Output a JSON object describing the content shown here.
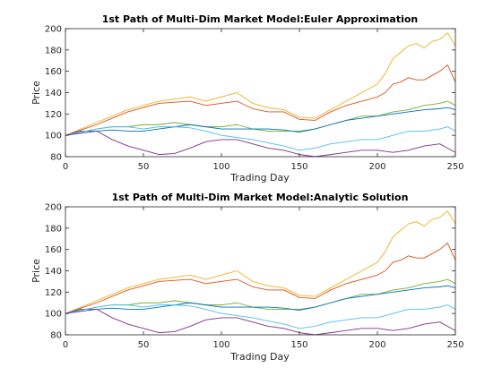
{
  "chart_data": [
    {
      "type": "line",
      "title": "1st Path of Multi-Dim Market Model:Euler Approximation",
      "xlabel": "Trading Day",
      "ylabel": "Price",
      "xlim": [
        0,
        250
      ],
      "ylim": [
        80,
        200
      ],
      "xticks": [
        0,
        50,
        100,
        150,
        200,
        250
      ],
      "yticks": [
        80,
        100,
        120,
        140,
        160,
        180,
        200
      ],
      "grid": false,
      "series": [
        {
          "color": "#EDB120",
          "x": [
            0,
            10,
            20,
            30,
            40,
            50,
            60,
            70,
            80,
            90,
            100,
            110,
            120,
            130,
            140,
            150,
            160,
            170,
            180,
            190,
            200,
            205,
            210,
            215,
            220,
            225,
            230,
            235,
            240,
            245,
            250
          ],
          "values": [
            100,
            106,
            112,
            118,
            124,
            128,
            132,
            134,
            136,
            132,
            136,
            140,
            130,
            126,
            124,
            117,
            116,
            124,
            132,
            140,
            148,
            158,
            172,
            178,
            184,
            186,
            182,
            188,
            190,
            196,
            184
          ]
        },
        {
          "color": "#D95319",
          "x": [
            0,
            10,
            20,
            30,
            40,
            50,
            60,
            70,
            80,
            90,
            100,
            110,
            120,
            130,
            140,
            150,
            160,
            170,
            180,
            190,
            200,
            205,
            210,
            215,
            220,
            225,
            230,
            235,
            240,
            245,
            250
          ],
          "values": [
            100,
            105,
            110,
            116,
            122,
            126,
            130,
            131,
            132,
            128,
            130,
            132,
            125,
            122,
            122,
            115,
            114,
            122,
            128,
            132,
            136,
            140,
            148,
            150,
            154,
            152,
            152,
            156,
            160,
            166,
            150
          ]
        },
        {
          "color": "#77AC30",
          "x": [
            0,
            10,
            20,
            30,
            40,
            50,
            60,
            70,
            80,
            90,
            100,
            110,
            120,
            130,
            140,
            150,
            160,
            170,
            180,
            190,
            200,
            210,
            220,
            230,
            240,
            245,
            250
          ],
          "values": [
            100,
            103,
            106,
            108,
            108,
            110,
            110,
            112,
            110,
            108,
            108,
            110,
            106,
            104,
            104,
            104,
            106,
            110,
            114,
            118,
            118,
            122,
            124,
            128,
            130,
            132,
            128
          ]
        },
        {
          "color": "#0072BD",
          "x": [
            0,
            10,
            20,
            30,
            40,
            50,
            60,
            70,
            80,
            90,
            100,
            110,
            120,
            130,
            140,
            150,
            160,
            170,
            180,
            190,
            200,
            210,
            220,
            230,
            240,
            245,
            250
          ],
          "values": [
            100,
            104,
            104,
            105,
            104,
            104,
            106,
            108,
            110,
            108,
            106,
            106,
            106,
            106,
            105,
            103,
            106,
            110,
            114,
            116,
            118,
            120,
            122,
            124,
            125,
            126,
            124
          ]
        },
        {
          "color": "#4DBEEE",
          "x": [
            0,
            10,
            20,
            30,
            40,
            50,
            60,
            70,
            80,
            90,
            100,
            110,
            120,
            130,
            140,
            150,
            160,
            170,
            180,
            190,
            200,
            210,
            220,
            230,
            240,
            245,
            250
          ],
          "values": [
            100,
            103,
            106,
            108,
            108,
            106,
            108,
            108,
            107,
            104,
            100,
            98,
            96,
            93,
            90,
            86,
            88,
            92,
            94,
            96,
            96,
            100,
            104,
            104,
            106,
            108,
            104
          ]
        },
        {
          "color": "#7E2F8E",
          "x": [
            0,
            10,
            20,
            30,
            40,
            50,
            60,
            70,
            80,
            90,
            100,
            110,
            120,
            130,
            140,
            150,
            160,
            170,
            180,
            190,
            200,
            210,
            220,
            230,
            240,
            245,
            250
          ],
          "values": [
            100,
            102,
            104,
            96,
            90,
            86,
            82,
            83,
            88,
            94,
            96,
            96,
            92,
            88,
            86,
            82,
            80,
            82,
            84,
            86,
            86,
            84,
            86,
            90,
            92,
            88,
            84
          ]
        }
      ]
    },
    {
      "type": "line",
      "title": "1st Path of Multi-Dim Market Model:Analytic Solution",
      "xlabel": "Trading Day",
      "ylabel": "Price",
      "xlim": [
        0,
        250
      ],
      "ylim": [
        80,
        200
      ],
      "xticks": [
        0,
        50,
        100,
        150,
        200,
        250
      ],
      "yticks": [
        80,
        100,
        120,
        140,
        160,
        180,
        200
      ],
      "grid": false,
      "series": [
        {
          "color": "#EDB120",
          "x": [
            0,
            10,
            20,
            30,
            40,
            50,
            60,
            70,
            80,
            90,
            100,
            110,
            120,
            130,
            140,
            150,
            160,
            170,
            180,
            190,
            200,
            205,
            210,
            215,
            220,
            225,
            230,
            235,
            240,
            245,
            250
          ],
          "values": [
            100,
            106,
            112,
            118,
            124,
            128,
            132,
            134,
            136,
            132,
            136,
            140,
            130,
            126,
            124,
            117,
            116,
            124,
            132,
            140,
            148,
            158,
            172,
            178,
            184,
            186,
            182,
            188,
            190,
            196,
            184
          ]
        },
        {
          "color": "#D95319",
          "x": [
            0,
            10,
            20,
            30,
            40,
            50,
            60,
            70,
            80,
            90,
            100,
            110,
            120,
            130,
            140,
            150,
            160,
            170,
            180,
            190,
            200,
            205,
            210,
            215,
            220,
            225,
            230,
            235,
            240,
            245,
            250
          ],
          "values": [
            100,
            105,
            110,
            116,
            122,
            126,
            130,
            131,
            132,
            128,
            130,
            132,
            125,
            122,
            122,
            115,
            114,
            122,
            128,
            132,
            136,
            140,
            148,
            150,
            154,
            152,
            152,
            156,
            160,
            166,
            150
          ]
        },
        {
          "color": "#77AC30",
          "x": [
            0,
            10,
            20,
            30,
            40,
            50,
            60,
            70,
            80,
            90,
            100,
            110,
            120,
            130,
            140,
            150,
            160,
            170,
            180,
            190,
            200,
            210,
            220,
            230,
            240,
            245,
            250
          ],
          "values": [
            100,
            103,
            106,
            108,
            108,
            110,
            110,
            112,
            110,
            108,
            108,
            110,
            106,
            104,
            104,
            104,
            106,
            110,
            114,
            118,
            118,
            122,
            124,
            128,
            130,
            132,
            128
          ]
        },
        {
          "color": "#0072BD",
          "x": [
            0,
            10,
            20,
            30,
            40,
            50,
            60,
            70,
            80,
            90,
            100,
            110,
            120,
            130,
            140,
            150,
            160,
            170,
            180,
            190,
            200,
            210,
            220,
            230,
            240,
            245,
            250
          ],
          "values": [
            100,
            104,
            104,
            105,
            104,
            104,
            106,
            108,
            110,
            108,
            106,
            106,
            106,
            106,
            105,
            103,
            106,
            110,
            114,
            116,
            118,
            120,
            122,
            124,
            125,
            126,
            124
          ]
        },
        {
          "color": "#4DBEEE",
          "x": [
            0,
            10,
            20,
            30,
            40,
            50,
            60,
            70,
            80,
            90,
            100,
            110,
            120,
            130,
            140,
            150,
            160,
            170,
            180,
            190,
            200,
            210,
            220,
            230,
            240,
            245,
            250
          ],
          "values": [
            100,
            103,
            106,
            108,
            108,
            106,
            108,
            108,
            107,
            104,
            100,
            98,
            96,
            93,
            90,
            86,
            88,
            92,
            94,
            96,
            96,
            100,
            104,
            104,
            106,
            108,
            104
          ]
        },
        {
          "color": "#7E2F8E",
          "x": [
            0,
            10,
            20,
            30,
            40,
            50,
            60,
            70,
            80,
            90,
            100,
            110,
            120,
            130,
            140,
            150,
            160,
            170,
            180,
            190,
            200,
            210,
            220,
            230,
            240,
            245,
            250
          ],
          "values": [
            100,
            102,
            104,
            96,
            90,
            86,
            82,
            83,
            88,
            94,
            96,
            96,
            92,
            88,
            86,
            82,
            80,
            82,
            84,
            86,
            86,
            84,
            86,
            90,
            92,
            88,
            84
          ]
        }
      ]
    }
  ]
}
